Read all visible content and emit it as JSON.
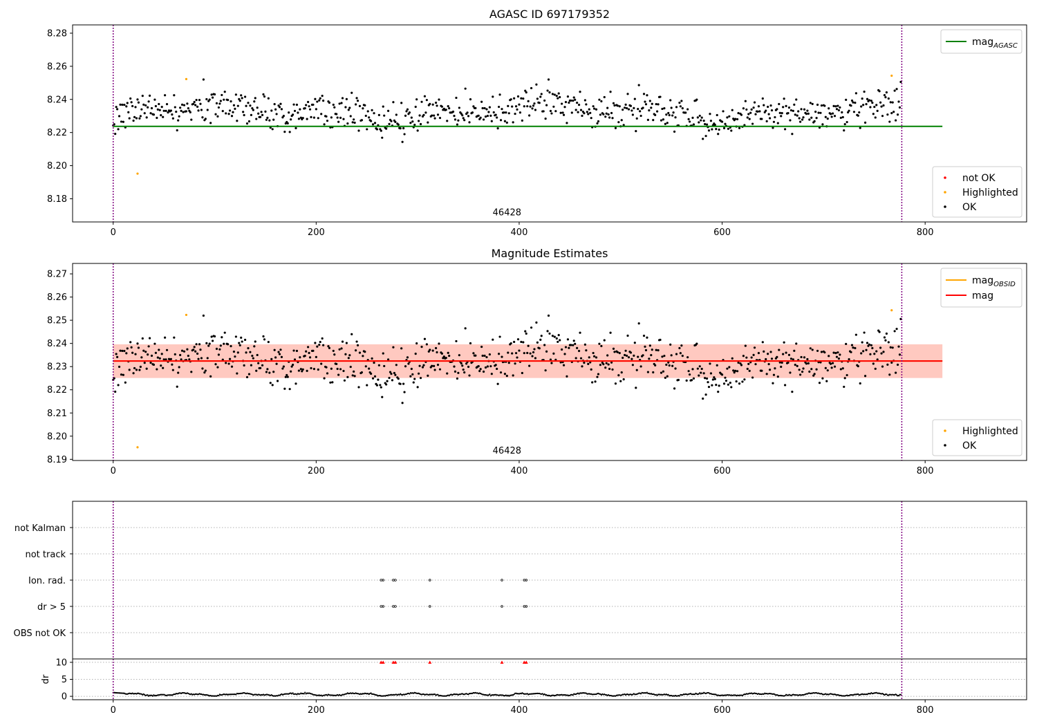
{
  "figure": {
    "panel1_title": "AGASC ID 697179352",
    "panel2_title": "Magnitude Estimates",
    "obsid": "46428"
  },
  "colors": {
    "ok": "#000000",
    "highlighted": "#ffa500",
    "not_ok": "#ff0000",
    "mag_agasc": "#008000",
    "mag": "#ff0000",
    "mag_obsid": "#ffa500",
    "band_outer": "#ffc0cb",
    "band_inner": "#ffa07a",
    "obs_boundary": "#800080"
  },
  "chart_data": [
    {
      "type": "scatter",
      "title": "AGASC ID 697179352",
      "xlim": [
        -40,
        900
      ],
      "ylim": [
        8.166,
        8.285
      ],
      "xticks": [
        0,
        200,
        400,
        600,
        800
      ],
      "xtick_labels": [
        "0",
        "200",
        "400",
        "600",
        "800"
      ],
      "yticks": [
        8.18,
        8.2,
        8.22,
        8.24,
        8.26,
        8.28
      ],
      "ytick_labels": [
        "8.18",
        "8.20",
        "8.22",
        "8.24",
        "8.26",
        "8.28"
      ],
      "obs_boundaries": [
        0,
        777
      ],
      "obs_label": {
        "text": "46428",
        "x": 388,
        "y": 8.17
      },
      "lines": [
        {
          "name": "mag",
          "sub": "AGASC",
          "y": 8.2237,
          "x": [
            0,
            817
          ],
          "color": "#008000"
        }
      ],
      "highlighted": [
        [
          24,
          8.1952
        ],
        [
          72,
          8.2523
        ],
        [
          767,
          8.2543
        ]
      ],
      "ok_points": {
        "n": 777,
        "base": 8.2324,
        "spread": 0.0068,
        "min": 8.211,
        "max": 8.252
      },
      "legend_lines": [
        {
          "name": "mag",
          "sub": "AGASC"
        }
      ],
      "legend_points": [
        "not OK",
        "Highlighted",
        "OK"
      ],
      "legend_lines_loc": "upper right",
      "legend_points_loc": "lower right"
    },
    {
      "type": "scatter",
      "title": "Magnitude Estimates",
      "xlim": [
        -40,
        900
      ],
      "ylim": [
        8.1895,
        8.2745
      ],
      "xticks": [
        0,
        200,
        400,
        600,
        800
      ],
      "xtick_labels": [
        "0",
        "200",
        "400",
        "600",
        "800"
      ],
      "yticks": [
        8.19,
        8.2,
        8.21,
        8.22,
        8.23,
        8.24,
        8.25,
        8.26,
        8.27
      ],
      "ytick_labels": [
        "8.19",
        "8.20",
        "8.21",
        "8.22",
        "8.23",
        "8.24",
        "8.25",
        "8.26",
        "8.27"
      ],
      "obs_boundaries": [
        0,
        777
      ],
      "obs_label": {
        "text": "46428",
        "x": 388,
        "y": 8.1925
      },
      "band": {
        "x": [
          0,
          817
        ],
        "outer": [
          8.2251,
          8.2396
        ],
        "inner": [
          8.2251,
          8.2396
        ]
      },
      "lines": [
        {
          "name": "mag",
          "sub": "OBSID",
          "y": 8.2324,
          "x": [
            0,
            817
          ],
          "color": "#ffa500"
        },
        {
          "name": "mag",
          "sub": "",
          "y": 8.2324,
          "x": [
            0,
            817
          ],
          "color": "#ff0000"
        }
      ],
      "highlighted": [
        [
          24,
          8.1952
        ],
        [
          72,
          8.2523
        ],
        [
          767,
          8.2543
        ]
      ],
      "ok_points": {
        "n": 777,
        "base": 8.2324,
        "spread": 0.0068,
        "min": 8.211,
        "max": 8.252
      },
      "legend_lines": [
        {
          "name": "mag",
          "sub": "OBSID"
        },
        {
          "name": "mag",
          "sub": ""
        }
      ],
      "legend_points": [
        "Highlighted",
        "OK"
      ],
      "legend_lines_loc": "upper right",
      "legend_points_loc": "lower right"
    },
    {
      "type": "scatter",
      "title": "",
      "xlim": [
        -40,
        900
      ],
      "categories": [
        "OBS not OK",
        "dr > 5",
        "Ion. rad.",
        "not track",
        "not Kalman"
      ],
      "flagged_frames": [
        264,
        266,
        276,
        278,
        312,
        383,
        405,
        407
      ],
      "flags": {
        "dr > 5": [
          264,
          266,
          276,
          278,
          312,
          383,
          405,
          407
        ],
        "Ion. rad.": [
          264,
          266,
          276,
          278,
          312,
          383,
          405,
          407
        ]
      },
      "obs_boundaries": [
        0,
        777
      ]
    },
    {
      "type": "line",
      "title": "",
      "ylabel": "dr",
      "xlim": [
        -40,
        900
      ],
      "ylim": [
        -1,
        11
      ],
      "xticks": [
        0,
        200,
        400,
        600,
        800
      ],
      "xtick_labels": [
        "0",
        "200",
        "400",
        "600",
        "800"
      ],
      "yticks": [
        0,
        5,
        10
      ],
      "ytick_labels": [
        "0",
        "5",
        "10"
      ],
      "dr_typical_range": [
        0.1,
        1.5
      ],
      "dr_clipped_value": 10,
      "dr_clipped_frames": [
        264,
        266,
        276,
        278,
        312,
        383,
        405,
        407
      ],
      "obs_boundaries": [
        0,
        777
      ]
    }
  ]
}
